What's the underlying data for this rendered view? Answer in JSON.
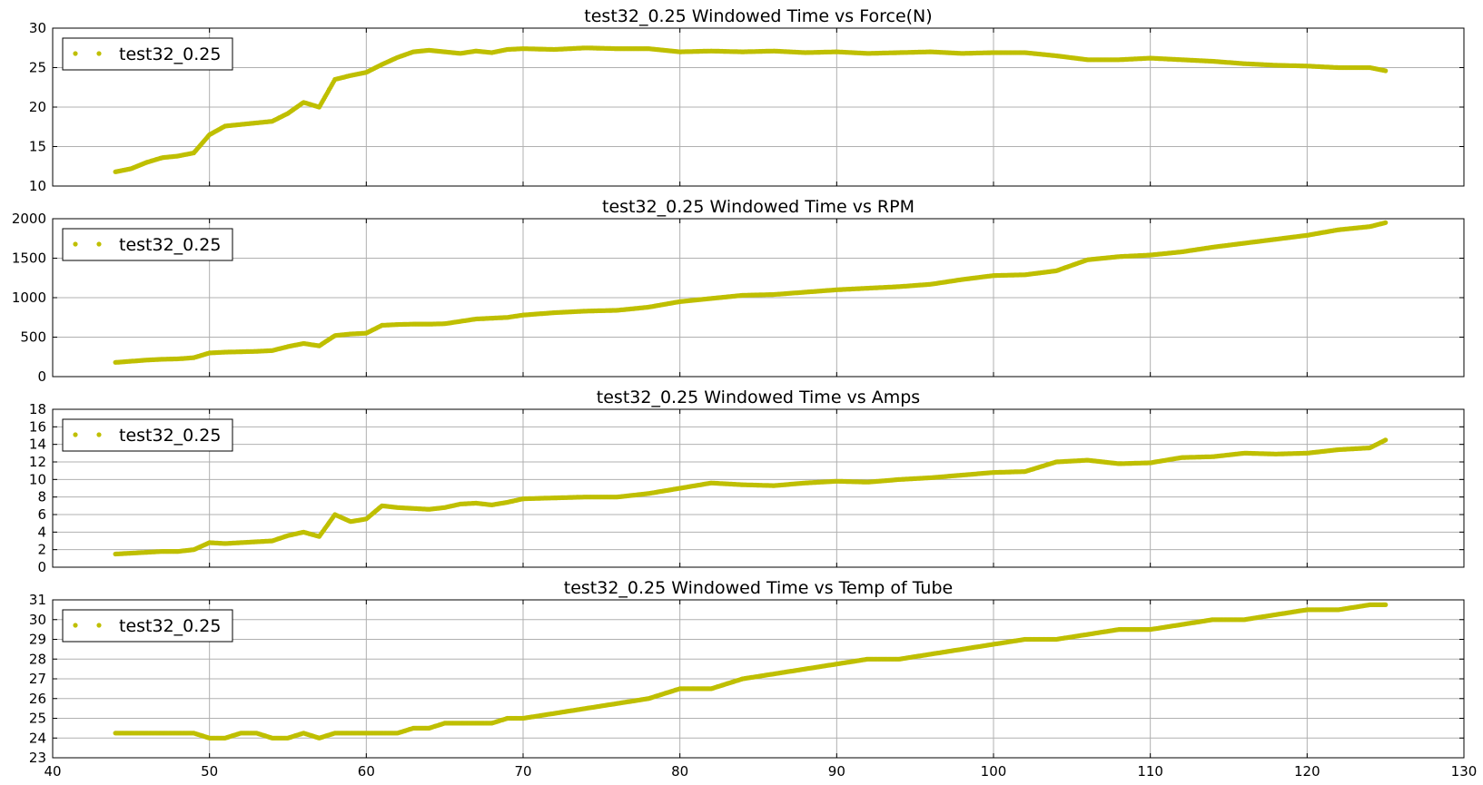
{
  "chart_data": [
    {
      "type": "scatter",
      "title": "test32_0.25 Windowed Time vs Force(N)",
      "xlabel": "",
      "ylabel": "",
      "xlim": [
        40,
        130
      ],
      "ylim": [
        10,
        30
      ],
      "xticks": [
        40,
        50,
        60,
        70,
        80,
        90,
        100,
        110,
        120,
        130
      ],
      "yticks": [
        10,
        15,
        20,
        25,
        30
      ],
      "show_xtick_labels": false,
      "grid": true,
      "legend": "top-left",
      "color": "#bfbf00",
      "series": [
        {
          "name": "test32_0.25",
          "x": [
            44,
            45,
            46,
            47,
            48,
            49,
            50,
            51,
            52,
            53,
            54,
            55,
            56,
            57,
            58,
            59,
            60,
            61,
            62,
            63,
            64,
            65,
            66,
            67,
            68,
            69,
            70,
            72,
            74,
            76,
            78,
            80,
            82,
            84,
            86,
            88,
            90,
            92,
            94,
            96,
            98,
            100,
            102,
            104,
            106,
            108,
            110,
            112,
            114,
            116,
            118,
            120,
            122,
            124,
            125
          ],
          "y": [
            11.8,
            12.2,
            13.0,
            13.6,
            13.8,
            14.2,
            16.5,
            17.6,
            17.8,
            18.0,
            18.2,
            19.2,
            20.6,
            20.0,
            23.5,
            24.0,
            24.4,
            25.4,
            26.3,
            27.0,
            27.2,
            27.0,
            26.8,
            27.1,
            26.9,
            27.3,
            27.4,
            27.3,
            27.5,
            27.4,
            27.4,
            27.0,
            27.1,
            27.0,
            27.1,
            26.9,
            27.0,
            26.8,
            26.9,
            27.0,
            26.8,
            26.9,
            26.9,
            26.5,
            26.0,
            26.0,
            26.2,
            26.0,
            25.8,
            25.5,
            25.3,
            25.2,
            25.0,
            25.0,
            24.6
          ]
        }
      ]
    },
    {
      "type": "scatter",
      "title": "test32_0.25 Windowed Time vs RPM",
      "xlabel": "",
      "ylabel": "",
      "xlim": [
        40,
        130
      ],
      "ylim": [
        0,
        2000
      ],
      "xticks": [
        40,
        50,
        60,
        70,
        80,
        90,
        100,
        110,
        120,
        130
      ],
      "yticks": [
        0,
        500,
        1000,
        1500,
        2000
      ],
      "show_xtick_labels": false,
      "grid": true,
      "legend": "top-left",
      "color": "#bfbf00",
      "series": [
        {
          "name": "test32_0.25",
          "x": [
            44,
            45,
            46,
            47,
            48,
            49,
            50,
            51,
            52,
            53,
            54,
            55,
            56,
            57,
            58,
            59,
            60,
            61,
            62,
            63,
            64,
            65,
            66,
            67,
            68,
            69,
            70,
            72,
            74,
            76,
            78,
            80,
            82,
            84,
            86,
            88,
            90,
            92,
            94,
            96,
            98,
            100,
            102,
            104,
            106,
            108,
            110,
            112,
            114,
            116,
            118,
            120,
            122,
            124,
            125
          ],
          "y": [
            180,
            195,
            210,
            220,
            225,
            240,
            300,
            310,
            315,
            320,
            330,
            380,
            420,
            390,
            520,
            540,
            550,
            650,
            660,
            665,
            665,
            670,
            700,
            730,
            740,
            750,
            780,
            810,
            830,
            840,
            880,
            950,
            990,
            1030,
            1040,
            1070,
            1100,
            1120,
            1140,
            1170,
            1230,
            1280,
            1290,
            1340,
            1480,
            1520,
            1540,
            1580,
            1640,
            1690,
            1740,
            1790,
            1860,
            1900,
            1950
          ]
        }
      ]
    },
    {
      "type": "scatter",
      "title": "test32_0.25 Windowed Time vs Amps",
      "xlabel": "",
      "ylabel": "",
      "xlim": [
        40,
        130
      ],
      "ylim": [
        0,
        18
      ],
      "xticks": [
        40,
        50,
        60,
        70,
        80,
        90,
        100,
        110,
        120,
        130
      ],
      "yticks": [
        0,
        2,
        4,
        6,
        8,
        10,
        12,
        14,
        16,
        18
      ],
      "show_xtick_labels": false,
      "grid": true,
      "legend": "top-left",
      "color": "#bfbf00",
      "series": [
        {
          "name": "test32_0.25",
          "x": [
            44,
            45,
            46,
            47,
            48,
            49,
            50,
            51,
            52,
            53,
            54,
            55,
            56,
            57,
            58,
            59,
            60,
            61,
            62,
            63,
            64,
            65,
            66,
            67,
            68,
            69,
            70,
            72,
            74,
            76,
            78,
            80,
            82,
            84,
            86,
            88,
            90,
            92,
            94,
            96,
            98,
            100,
            102,
            104,
            106,
            108,
            110,
            112,
            114,
            116,
            118,
            120,
            122,
            124,
            125
          ],
          "y": [
            1.5,
            1.6,
            1.7,
            1.8,
            1.8,
            2.0,
            2.8,
            2.7,
            2.8,
            2.9,
            3.0,
            3.6,
            4.0,
            3.5,
            6.0,
            5.2,
            5.5,
            7.0,
            6.8,
            6.7,
            6.6,
            6.8,
            7.2,
            7.3,
            7.1,
            7.4,
            7.8,
            7.9,
            8.0,
            8.0,
            8.4,
            9.0,
            9.6,
            9.4,
            9.3,
            9.6,
            9.8,
            9.7,
            10.0,
            10.2,
            10.5,
            10.8,
            10.9,
            12.0,
            12.2,
            11.8,
            11.9,
            12.5,
            12.6,
            13.0,
            12.9,
            13.0,
            13.4,
            13.6,
            14.5
          ]
        }
      ]
    },
    {
      "type": "scatter",
      "title": "test32_0.25 Windowed Time vs Temp of Tube",
      "xlabel": "",
      "ylabel": "",
      "xlim": [
        40,
        130
      ],
      "ylim": [
        23,
        31
      ],
      "xticks": [
        40,
        50,
        60,
        70,
        80,
        90,
        100,
        110,
        120,
        130
      ],
      "yticks": [
        23,
        24,
        25,
        26,
        27,
        28,
        29,
        30,
        31
      ],
      "show_xtick_labels": true,
      "grid": true,
      "legend": "top-left",
      "color": "#bfbf00",
      "series": [
        {
          "name": "test32_0.25",
          "x": [
            44,
            45,
            46,
            47,
            48,
            49,
            50,
            51,
            52,
            53,
            54,
            55,
            56,
            57,
            58,
            59,
            60,
            61,
            62,
            63,
            64,
            65,
            66,
            67,
            68,
            69,
            70,
            72,
            74,
            76,
            78,
            80,
            82,
            84,
            86,
            88,
            90,
            92,
            94,
            96,
            98,
            100,
            102,
            104,
            106,
            108,
            110,
            112,
            114,
            116,
            118,
            120,
            122,
            124,
            125
          ],
          "y": [
            24.25,
            24.25,
            24.25,
            24.25,
            24.25,
            24.25,
            24.0,
            24.0,
            24.25,
            24.25,
            24.0,
            24.0,
            24.25,
            24.0,
            24.25,
            24.25,
            24.25,
            24.25,
            24.25,
            24.5,
            24.5,
            24.75,
            24.75,
            24.75,
            24.75,
            25.0,
            25.0,
            25.25,
            25.5,
            25.75,
            26.0,
            26.5,
            26.5,
            27.0,
            27.25,
            27.5,
            27.75,
            28.0,
            28.0,
            28.25,
            28.5,
            28.75,
            29.0,
            29.0,
            29.25,
            29.5,
            29.5,
            29.75,
            30.0,
            30.0,
            30.25,
            30.5,
            30.5,
            30.75,
            30.75
          ]
        }
      ]
    }
  ]
}
